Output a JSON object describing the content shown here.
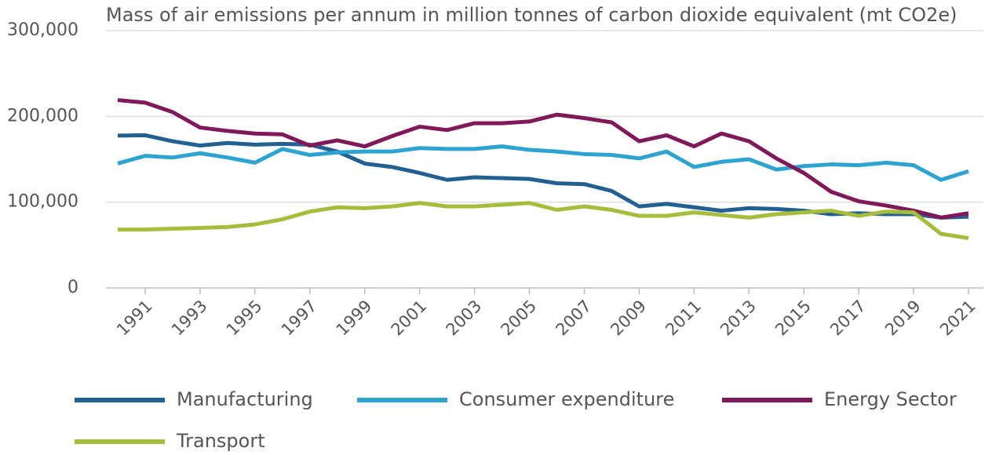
{
  "chart_data": {
    "type": "line",
    "title": "Mass of air emissions per annum in million tonnes of carbon dioxide equivalent (mt CO2e)",
    "x": [
      1990,
      1991,
      1992,
      1993,
      1994,
      1995,
      1996,
      1997,
      1998,
      1999,
      2000,
      2001,
      2002,
      2003,
      2004,
      2005,
      2006,
      2007,
      2008,
      2009,
      2010,
      2011,
      2012,
      2013,
      2014,
      2015,
      2016,
      2017,
      2018,
      2019,
      2020,
      2021
    ],
    "xlim": [
      1990,
      2021
    ],
    "xticks": [
      1991,
      1993,
      1995,
      1997,
      1999,
      2001,
      2003,
      2005,
      2007,
      2009,
      2011,
      2013,
      2015,
      2017,
      2019,
      2021
    ],
    "ylim": [
      0,
      300000
    ],
    "yticks": [
      {
        "value": 0,
        "label": "0"
      },
      {
        "value": 100000,
        "label": "100,000"
      },
      {
        "value": 200000,
        "label": "200,000"
      },
      {
        "value": 300000,
        "label": "300,000"
      }
    ],
    "grid": true,
    "legend": "bottom",
    "series": [
      {
        "name": "Manufacturing",
        "color": "#236092",
        "values": [
          177500,
          178000,
          171000,
          166000,
          169000,
          167000,
          168000,
          167000,
          159000,
          145000,
          141000,
          134000,
          126000,
          129000,
          128000,
          127000,
          122000,
          121000,
          113000,
          95000,
          98000,
          94000,
          90000,
          93000,
          92000,
          90000,
          86000,
          87000,
          86000,
          86000,
          82000,
          83000
        ]
      },
      {
        "name": "Consumer expenditure",
        "color": "#2ea3d0",
        "values": [
          145000,
          154000,
          152000,
          157000,
          152000,
          146000,
          162000,
          155000,
          158000,
          159000,
          159000,
          163000,
          162000,
          162000,
          165000,
          161000,
          159000,
          156000,
          155000,
          151000,
          159000,
          141000,
          147000,
          150000,
          138000,
          142000,
          144000,
          143000,
          146000,
          143000,
          126000,
          136000
        ]
      },
      {
        "name": "Energy Sector",
        "color": "#80195a",
        "values": [
          219000,
          216000,
          205000,
          187000,
          183000,
          180000,
          179000,
          166000,
          172000,
          165000,
          177000,
          188000,
          184000,
          192000,
          192000,
          194000,
          202000,
          198000,
          193000,
          171000,
          178000,
          165000,
          180000,
          171000,
          151000,
          134000,
          112000,
          101000,
          96000,
          90000,
          82000,
          87000
        ]
      },
      {
        "name": "Transport",
        "color": "#a5bd3c",
        "values": [
          68000,
          68000,
          69000,
          70000,
          71000,
          74000,
          80000,
          89000,
          94000,
          93000,
          95000,
          99000,
          95000,
          95000,
          97000,
          99000,
          91000,
          95000,
          91000,
          84000,
          84000,
          88000,
          85000,
          82000,
          86000,
          88000,
          90000,
          84000,
          89000,
          88000,
          63000,
          58000
        ]
      }
    ]
  }
}
